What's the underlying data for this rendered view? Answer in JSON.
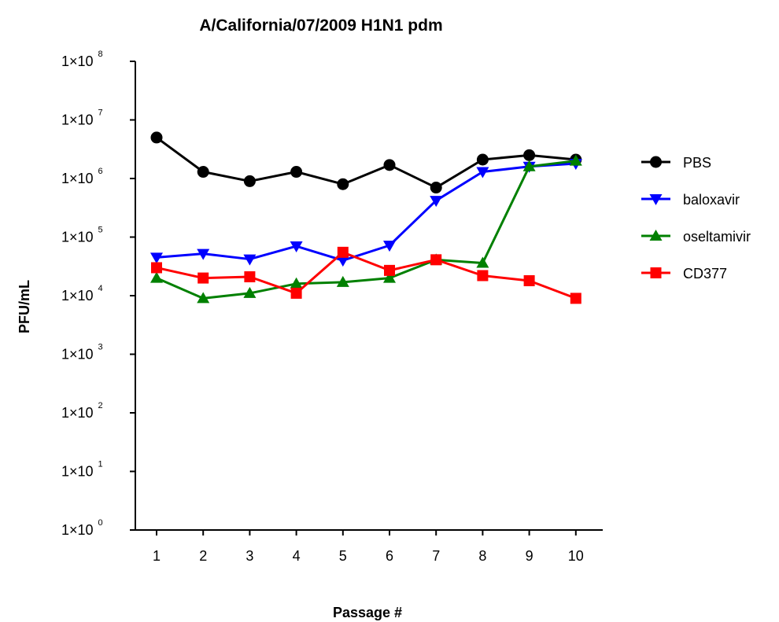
{
  "chart_data": {
    "type": "line",
    "title": "A/California/07/2009 H1N1 pdm",
    "xlabel": "Passage #",
    "ylabel": "PFU/mL",
    "x": [
      1,
      2,
      3,
      4,
      5,
      6,
      7,
      8,
      9,
      10
    ],
    "x_ticks": [
      "1",
      "2",
      "3",
      "4",
      "5",
      "6",
      "7",
      "8",
      "9",
      "10"
    ],
    "yscale": "log",
    "ylim": [
      1,
      100000000
    ],
    "y_ticks": [
      {
        "base": "1×10",
        "exp": "0"
      },
      {
        "base": "1×10",
        "exp": "1"
      },
      {
        "base": "1×10",
        "exp": "2"
      },
      {
        "base": "1×10",
        "exp": "3"
      },
      {
        "base": "1×10",
        "exp": "4"
      },
      {
        "base": "1×10",
        "exp": "5"
      },
      {
        "base": "1×10",
        "exp": "6"
      },
      {
        "base": "1×10",
        "exp": "7"
      },
      {
        "base": "1×10",
        "exp": "8"
      }
    ],
    "legend_position": "right",
    "grid": false,
    "series": [
      {
        "name": "PBS",
        "color": "#000000",
        "marker": "circle",
        "values": [
          5000000,
          1300000,
          900000,
          1300000,
          800000,
          1700000,
          700000,
          2100000,
          2500000,
          2100000
        ]
      },
      {
        "name": "baloxavir",
        "color": "#0000ff",
        "marker": "triangle-down",
        "values": [
          45000,
          52000,
          42000,
          70000,
          40000,
          72000,
          420000,
          1300000,
          1600000,
          1800000
        ]
      },
      {
        "name": "oseltamivir",
        "color": "#008000",
        "marker": "triangle-up",
        "values": [
          20000,
          9000,
          11000,
          16000,
          17000,
          20000,
          41000,
          36000,
          1600000,
          2000000
        ]
      },
      {
        "name": "CD377",
        "color": "#ff0000",
        "marker": "square",
        "values": [
          30000,
          20000,
          21000,
          11000,
          55000,
          27000,
          41000,
          22000,
          18000,
          9000
        ]
      }
    ]
  }
}
